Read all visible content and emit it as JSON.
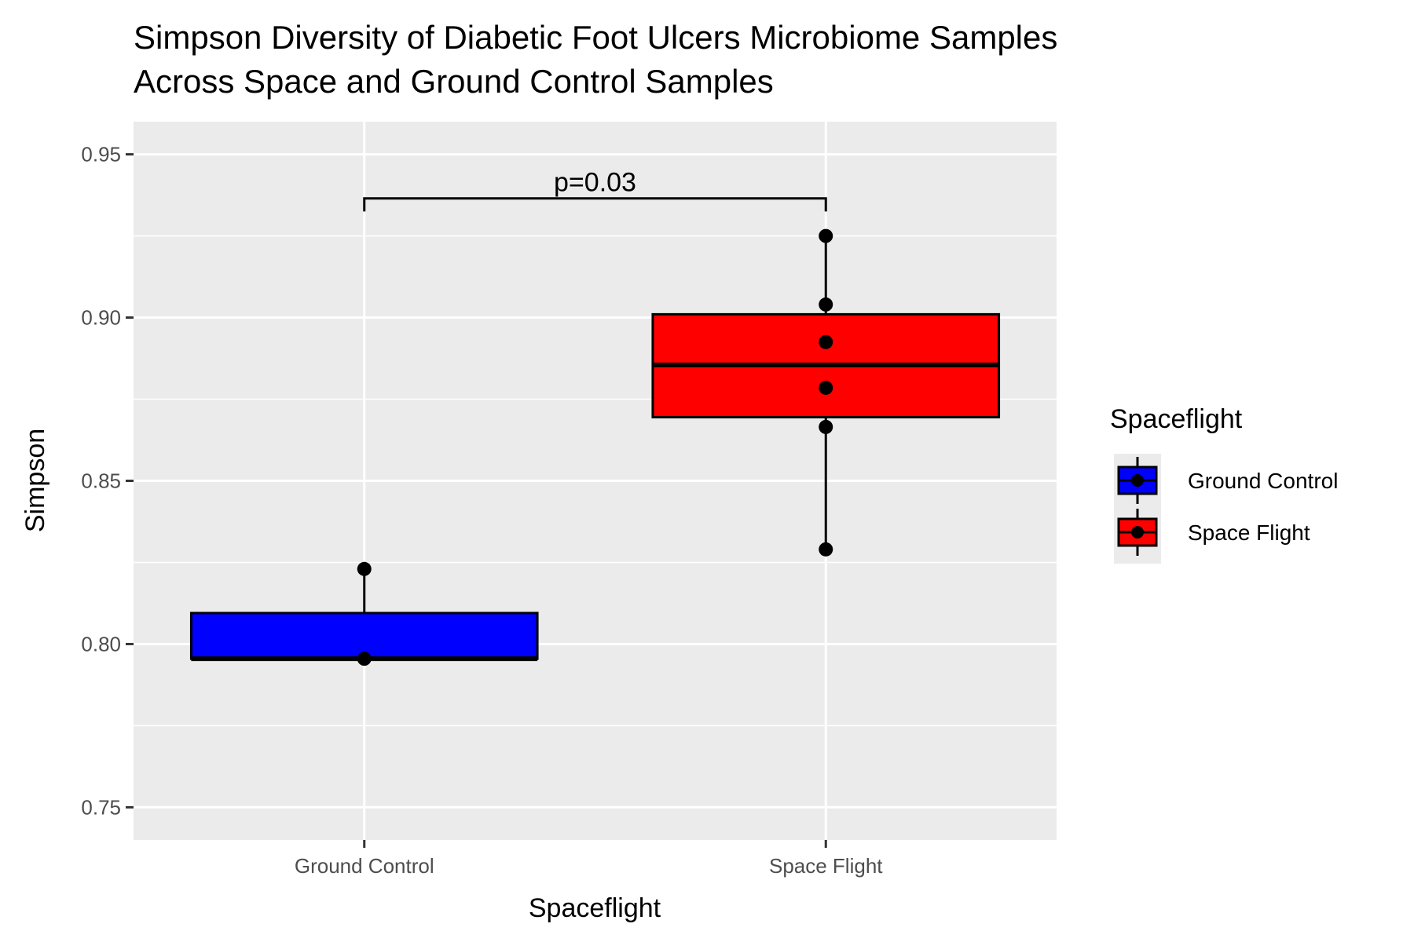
{
  "chart_data": {
    "type": "box",
    "title_lines": [
      "Simpson Diversity of Diabetic Foot Ulcers Microbiome Samples",
      "Across Space and Ground Control Samples"
    ],
    "xlabel": "Spaceflight",
    "ylabel": "Simpson",
    "categories": [
      "Ground Control",
      "Space Flight"
    ],
    "ylim": [
      0.74,
      0.96
    ],
    "yticks": [
      0.75,
      0.8,
      0.85,
      0.9,
      0.95
    ],
    "ytick_labels": [
      "0.75",
      "0.80",
      "0.85",
      "0.90",
      "0.95"
    ],
    "grid": true,
    "groups": [
      {
        "name": "Ground Control",
        "color": "#0000ff",
        "q1": 0.7955,
        "median": 0.7955,
        "q3": 0.8095,
        "whisker_low": 0.7955,
        "whisker_high": 0.823,
        "points": [
          0.823,
          0.7955
        ]
      },
      {
        "name": "Space Flight",
        "color": "#ff0000",
        "q1": 0.8695,
        "median": 0.8855,
        "q3": 0.901,
        "whisker_low": 0.829,
        "whisker_high": 0.925,
        "points": [
          0.925,
          0.904,
          0.8925,
          0.8785,
          0.8665,
          0.829
        ]
      }
    ],
    "annotation": {
      "text": "p=0.03",
      "between": [
        "Ground Control",
        "Space Flight"
      ],
      "bracket_y": 0.9365,
      "tip_y": 0.9325
    },
    "legend": {
      "title": "Spaceflight",
      "placement": "right",
      "entries": [
        "Ground Control",
        "Space Flight"
      ]
    }
  }
}
